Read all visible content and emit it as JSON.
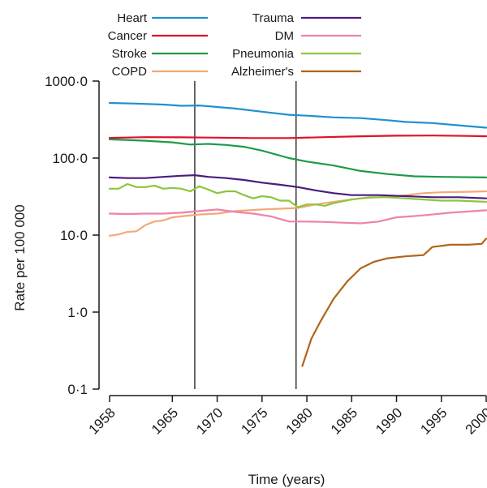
{
  "chart_data": {
    "type": "line",
    "title": "",
    "xlabel": "Time (years)",
    "ylabel": "Rate per 100 000",
    "y_scale": "log",
    "xlim": [
      1958,
      2000
    ],
    "ylim": [
      0.1,
      1000
    ],
    "x_ticks": [
      1958,
      1965,
      1970,
      1975,
      1980,
      1985,
      1990,
      1995,
      2000
    ],
    "x_tick_labels": [
      "1958",
      "1965",
      "1970",
      "1975",
      "1980",
      "1985",
      "1990",
      "1995",
      "2000"
    ],
    "y_ticks": [
      0.1,
      1,
      10,
      100,
      1000
    ],
    "y_tick_labels": [
      "0·1",
      "1·0",
      "10·0",
      "100·0",
      "1000·0"
    ],
    "vertical_markers": [
      1967.5,
      1978.8
    ],
    "grid": false,
    "legend_position": "top",
    "series": [
      {
        "name": "Heart",
        "color": "#1e90d0",
        "x": [
          1958,
          1961,
          1964,
          1966,
          1968,
          1970,
          1972,
          1975,
          1978,
          1980,
          1983,
          1986,
          1989,
          1991,
          1994,
          1998,
          2000
        ],
        "y": [
          520,
          510,
          495,
          478,
          482,
          460,
          440,
          400,
          365,
          355,
          338,
          330,
          310,
          295,
          285,
          260,
          248
        ]
      },
      {
        "name": "Cancer",
        "color": "#e0102c",
        "x": [
          1958,
          1962,
          1966,
          1970,
          1974,
          1978,
          1982,
          1986,
          1990,
          1994,
          1998,
          2000
        ],
        "y": [
          183,
          187,
          186,
          184,
          182,
          182,
          187,
          192,
          195,
          196,
          194,
          192
        ]
      },
      {
        "name": "Stroke",
        "color": "#1e9a48",
        "x": [
          1958,
          1962,
          1965,
          1967,
          1969,
          1971,
          1973,
          1975,
          1978,
          1980,
          1983,
          1986,
          1989,
          1992,
          1995,
          2000
        ],
        "y": [
          175,
          168,
          160,
          150,
          153,
          148,
          140,
          125,
          100,
          90,
          80,
          68,
          62,
          58,
          57,
          56
        ]
      },
      {
        "name": "COPD",
        "color": "#f5a878",
        "x": [
          1958,
          1959,
          1960,
          1961,
          1962,
          1963,
          1964,
          1965,
          1966,
          1968,
          1970,
          1972,
          1975,
          1977,
          1979,
          1981,
          1983,
          1986,
          1990,
          1993,
          1995,
          1998,
          2000
        ],
        "y": [
          9.8,
          10.2,
          11,
          11.2,
          13.5,
          15,
          15.5,
          17,
          17.5,
          18.5,
          19,
          20.5,
          21.5,
          22,
          22.5,
          25,
          27,
          30,
          32,
          35,
          36,
          36.5,
          37
        ]
      },
      {
        "name": "Trauma",
        "color": "#4a1c80",
        "x": [
          1958,
          1960,
          1962,
          1964,
          1966,
          1967.5,
          1969,
          1971,
          1973,
          1975,
          1977,
          1979,
          1981,
          1983,
          1985,
          1988,
          1991,
          1994,
          1997,
          2000
        ],
        "y": [
          56,
          55,
          55,
          57,
          59,
          60,
          57,
          55,
          52,
          48,
          45,
          42,
          38,
          35,
          33,
          33,
          32,
          31,
          31,
          30
        ]
      },
      {
        "name": "DM",
        "color": "#ee82aa",
        "x": [
          1958,
          1960,
          1962,
          1964,
          1966,
          1968,
          1970,
          1972,
          1974,
          1976,
          1978,
          1980,
          1982,
          1984,
          1986,
          1988,
          1990,
          1993,
          1996,
          2000
        ],
        "y": [
          19,
          18.8,
          19,
          19,
          19.5,
          20.5,
          21.5,
          20,
          19,
          17.5,
          15,
          15,
          14.8,
          14.5,
          14.2,
          15,
          17,
          18,
          19.5,
          21
        ]
      },
      {
        "name": "Pneumonia",
        "color": "#8cc63e",
        "x": [
          1958,
          1959,
          1960,
          1961,
          1962,
          1963,
          1964,
          1965,
          1966,
          1967,
          1968,
          1969,
          1970,
          1971,
          1972,
          1973,
          1974,
          1975,
          1976,
          1977,
          1978,
          1979,
          1980,
          1981,
          1982,
          1983,
          1985,
          1987,
          1989,
          1991,
          1993,
          1995,
          1997,
          2000
        ],
        "y": [
          40,
          40,
          46,
          42,
          42,
          44,
          40,
          41,
          40,
          37,
          43,
          39,
          35,
          37,
          37,
          33,
          30,
          32,
          31,
          28,
          28,
          23,
          25,
          25,
          24,
          26,
          29,
          31,
          31,
          30,
          29,
          28,
          28,
          27
        ]
      },
      {
        "name": "Alzheimer's",
        "color": "#b0641a",
        "x": [
          1979.5,
          1980.5,
          1981.5,
          1983,
          1984.5,
          1986,
          1987.5,
          1989,
          1991,
          1993,
          1994,
          1996,
          1998,
          1999.5,
          2000
        ],
        "y": [
          0.2,
          0.45,
          0.75,
          1.5,
          2.5,
          3.7,
          4.5,
          5,
          5.3,
          5.5,
          7,
          7.5,
          7.5,
          7.7,
          9
        ]
      }
    ]
  }
}
